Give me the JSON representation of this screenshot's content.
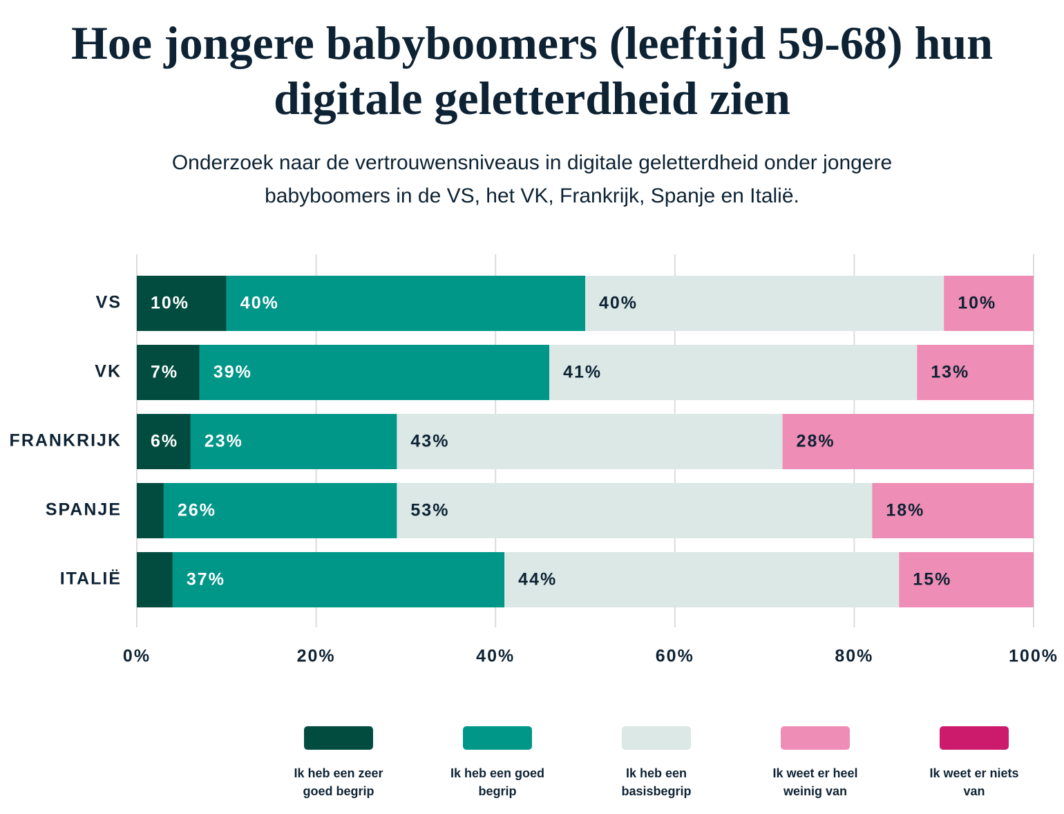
{
  "chart_data": {
    "type": "stacked-bar-horizontal",
    "title": "Hoe jongere babyboomers (leeftijd 59-68) hun digitale geletterdheid zien",
    "subtitle": "Onderzoek naar de vertrouwensniveaus in digitale geletterdheid onder jongere babyboomers in de VS, het VK, Frankrijk, Spanje en Italië.",
    "categories": [
      "VS",
      "VK",
      "FRANKRIJK",
      "SPANJE",
      "ITALIË"
    ],
    "series": [
      {
        "name": "Ik heb een zeer goed begrip",
        "color": "#024c3f",
        "values": [
          10,
          7,
          6,
          3,
          4
        ],
        "value_labels": [
          "10%",
          "7%",
          "6%",
          null,
          null
        ]
      },
      {
        "name": "Ik heb een goed begrip",
        "color": "#009688",
        "values": [
          40,
          39,
          23,
          26,
          37
        ],
        "value_labels": [
          "40%",
          "39%",
          "23%",
          "26%",
          "37%"
        ]
      },
      {
        "name": "Ik heb een basisbegrip",
        "color": "#dbe8e6",
        "values": [
          40,
          41,
          43,
          53,
          44
        ],
        "value_labels": [
          "40%",
          "41%",
          "43%",
          "53%",
          "44%"
        ]
      },
      {
        "name": "Ik weet er heel weinig van",
        "color": "#ee8db5",
        "values": [
          10,
          13,
          28,
          18,
          15
        ],
        "value_labels": [
          "10%",
          "13%",
          "28%",
          "18%",
          "15%"
        ]
      },
      {
        "name": "Ik weet er niets van",
        "color": "#cc1a6c",
        "values": [
          0,
          0,
          0,
          0,
          0
        ],
        "value_labels": [
          null,
          null,
          null,
          null,
          null
        ]
      }
    ],
    "xlim": [
      0,
      100
    ],
    "xticks": [
      {
        "value": 0,
        "label": "0%"
      },
      {
        "value": 20,
        "label": "20%"
      },
      {
        "value": 40,
        "label": "40%"
      },
      {
        "value": 60,
        "label": "60%"
      },
      {
        "value": 80,
        "label": "80%"
      },
      {
        "value": 100,
        "label": "100%"
      }
    ],
    "grid": true
  }
}
